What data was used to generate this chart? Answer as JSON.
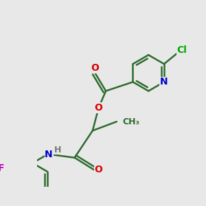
{
  "background_color": "#e8e8e8",
  "bond_color": "#2d6b2d",
  "atom_colors": {
    "O": "#dd0000",
    "N": "#0000cc",
    "Cl": "#00aa00",
    "F": "#bb00bb",
    "C": "#2d6b2d",
    "H": "#777777"
  },
  "figsize": [
    3.0,
    3.0
  ],
  "dpi": 100
}
